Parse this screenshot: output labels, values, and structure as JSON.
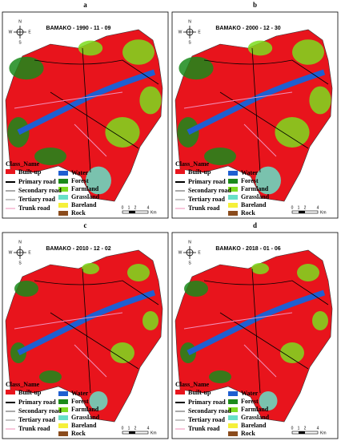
{
  "panels": [
    {
      "label": "a",
      "title": "BAMAKO - 1990 - 11 - 09"
    },
    {
      "label": "b",
      "title": "BAMAKO - 2000 - 12 - 30"
    },
    {
      "label": "c",
      "title": "BAMAKO - 2010 - 12 - 02"
    },
    {
      "label": "d",
      "title": "BAMAKO - 2018 - 01 - 06"
    }
  ],
  "compass": {
    "n": "N",
    "s": "S",
    "e": "E",
    "w": "W"
  },
  "legend": {
    "title": "Class_Name",
    "classes": [
      {
        "name": "Built-up",
        "color": "#e8141c"
      },
      {
        "name": "Water",
        "color": "#1f5fd1"
      },
      {
        "name": "Forest",
        "color": "#1a8a1a"
      },
      {
        "name": "Farmland",
        "color": "#7ddc1f"
      },
      {
        "name": "Grassland",
        "color": "#66e0c8"
      },
      {
        "name": "Bareland",
        "color": "#f5f03a"
      },
      {
        "name": "Rock",
        "color": "#8a4b1c"
      }
    ],
    "roads": [
      {
        "name": "Primary road",
        "color": "#000000"
      },
      {
        "name": "Secondary road",
        "color": "#555555"
      },
      {
        "name": "Tertiary road",
        "color": "#888888"
      },
      {
        "name": "Trunk road",
        "color": "#f28fb8"
      }
    ]
  },
  "scale": {
    "ticks": [
      "0",
      "1",
      "2",
      "4"
    ],
    "unit": "Km"
  }
}
